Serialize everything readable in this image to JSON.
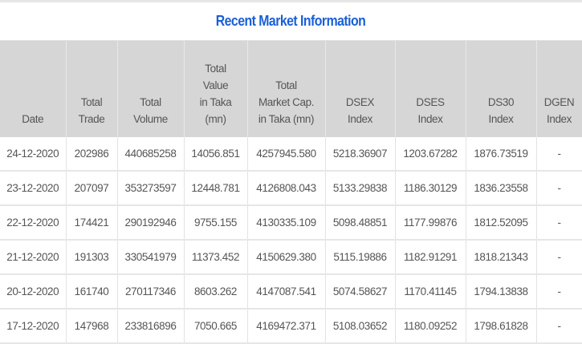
{
  "title": "Recent Market Information",
  "columns": [
    [
      "Date"
    ],
    [
      "Total",
      "Trade"
    ],
    [
      "Total",
      "Volume"
    ],
    [
      "Total",
      "Value",
      "in Taka",
      "(mn)"
    ],
    [
      "Total",
      "Market Cap.",
      "in Taka (mn)"
    ],
    [
      "DSEX",
      "Index"
    ],
    [
      "DSES",
      "Index"
    ],
    [
      "DS30",
      "Index"
    ],
    [
      "DGEN",
      "Index"
    ]
  ],
  "rows": [
    [
      "24-12-2020",
      "202986",
      "440685258",
      "14056.851",
      "4257945.580",
      "5218.36907",
      "1203.67282",
      "1876.73519",
      "-"
    ],
    [
      "23-12-2020",
      "207097",
      "353273597",
      "12448.781",
      "4126808.043",
      "5133.29838",
      "1186.30129",
      "1836.23558",
      "-"
    ],
    [
      "22-12-2020",
      "174421",
      "290192946",
      "9755.155",
      "4130335.109",
      "5098.48851",
      "1177.99876",
      "1812.52095",
      "-"
    ],
    [
      "21-12-2020",
      "191303",
      "330541979",
      "11373.452",
      "4150629.380",
      "5115.19886",
      "1182.91291",
      "1818.21343",
      "-"
    ],
    [
      "20-12-2020",
      "161740",
      "270117346",
      "8603.262",
      "4147087.541",
      "5074.58627",
      "1170.41145",
      "1794.13838",
      "-"
    ],
    [
      "17-12-2020",
      "147968",
      "233816896",
      "7050.665",
      "4169472.371",
      "5108.03652",
      "1180.09252",
      "1798.61828",
      "-"
    ]
  ],
  "colors": {
    "title": "#1a5fd6",
    "header_bg": "#d6d6d6"
  }
}
